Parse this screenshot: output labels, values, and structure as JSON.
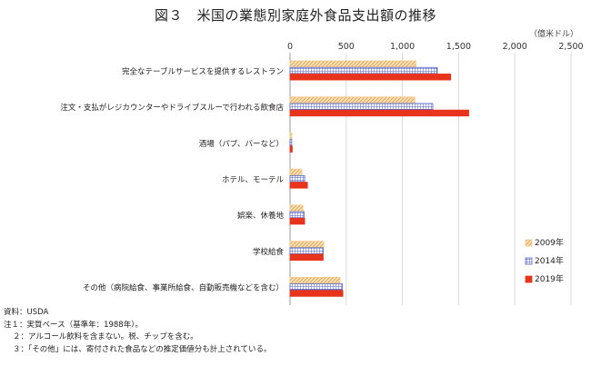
{
  "title": "図３　米国の業態別家庭外食品支出額の推移",
  "unit": "（億米ドル）",
  "chart_data": {
    "type": "bar",
    "orientation": "horizontal",
    "categories": [
      "完全なテーブルサービスを提供するレストラン",
      "注文・支払がレジカウンターやドライブスルーで行われる飲食店",
      "酒場（パブ、バーなど）",
      "ホテル、モーテル",
      "娯楽、休養地",
      "学校給食",
      "その他（病院給食、事業所給食、自動販売機などを含む）"
    ],
    "series": [
      {
        "name": "2009年",
        "values": [
          1120,
          1110,
          15,
          105,
          115,
          300,
          445
        ],
        "color": "#f5c98a",
        "pattern": "diagonal"
      },
      {
        "name": "2014年",
        "values": [
          1310,
          1270,
          15,
          130,
          125,
          295,
          465
        ],
        "color": "#5566cc",
        "pattern": "grid"
      },
      {
        "name": "2019年",
        "values": [
          1430,
          1590,
          20,
          155,
          130,
          295,
          470
        ],
        "color": "#e8341c",
        "pattern": "solid"
      }
    ],
    "xlim": [
      0,
      2500
    ],
    "xticks": [
      0,
      500,
      1000,
      1500,
      2000,
      2500
    ],
    "xtick_labels": [
      "0",
      "500",
      "1,000",
      "1,500",
      "2,000",
      "2,500"
    ],
    "grid": true,
    "legend_position": "right"
  },
  "notes": [
    "資料：USDA",
    "注１：実質ベース（基準年：1988年）。",
    "２：アルコール飲料を含まない。税、チップを含む。",
    "３：「その他」には、寄付された食品などの推定価値分も計上されている。"
  ]
}
